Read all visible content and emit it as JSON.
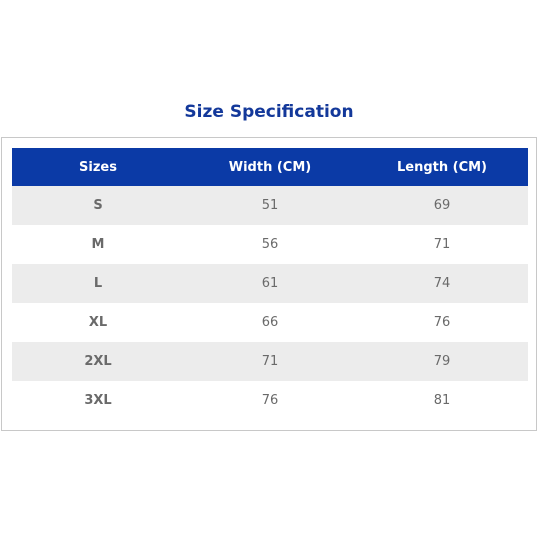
{
  "title": "Size Specification",
  "table": {
    "header": [
      "Sizes",
      "Width (CM)",
      "Length (CM)"
    ],
    "rows": [
      [
        "S",
        51,
        69
      ],
      [
        "M",
        56,
        71
      ],
      [
        "L",
        61,
        74
      ],
      [
        "XL",
        66,
        76
      ],
      [
        "2XL",
        71,
        79
      ],
      [
        "3XL",
        76,
        81
      ]
    ]
  }
}
